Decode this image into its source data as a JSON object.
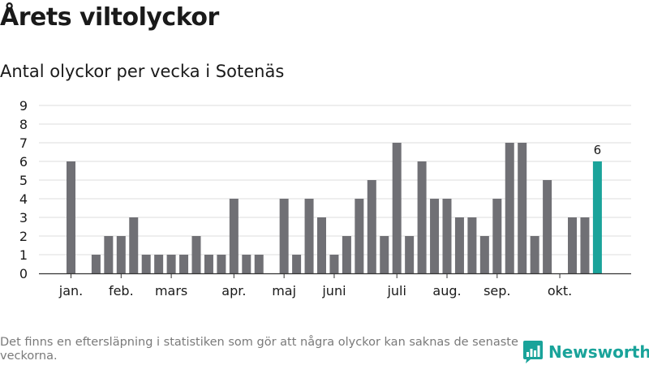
{
  "title": "Årets viltolyckor",
  "subtitle": "Antal olyckor per vecka i Sotenäs",
  "footnote": "Det finns en eftersläpning i statistiken som gör att några olyckor kan saknas de senaste veckorna.",
  "brand": {
    "name": "Newsworthy",
    "icon": "newsworthy-logo-icon"
  },
  "colors": {
    "bar": "#707075",
    "highlight": "#1aa39a",
    "grid": "#dcdcdc",
    "axis": "#333333",
    "brand": "#19a39a"
  },
  "chart_data": {
    "type": "bar",
    "ylim": [
      0,
      9
    ],
    "yticks": [
      "0",
      "1",
      "2",
      "3",
      "4",
      "5",
      "6",
      "7",
      "8",
      "9"
    ],
    "grid": true,
    "values": [
      6,
      0,
      1,
      2,
      2,
      3,
      1,
      1,
      1,
      1,
      2,
      1,
      1,
      4,
      1,
      1,
      0,
      4,
      1,
      4,
      3,
      1,
      2,
      4,
      5,
      2,
      7,
      2,
      6,
      4,
      4,
      3,
      3,
      2,
      4,
      7,
      7,
      2,
      5,
      0,
      3,
      3,
      6
    ],
    "highlight_index": 42,
    "highlight_label": "6",
    "month_labels": [
      {
        "label": "jan.",
        "bar": 0
      },
      {
        "label": "feb.",
        "bar": 4
      },
      {
        "label": "mars",
        "bar": 8
      },
      {
        "label": "apr.",
        "bar": 13
      },
      {
        "label": "maj",
        "bar": 17
      },
      {
        "label": "juni",
        "bar": 21
      },
      {
        "label": "juli",
        "bar": 26
      },
      {
        "label": "aug.",
        "bar": 30
      },
      {
        "label": "sep.",
        "bar": 34
      },
      {
        "label": "okt.",
        "bar": 39
      }
    ]
  }
}
